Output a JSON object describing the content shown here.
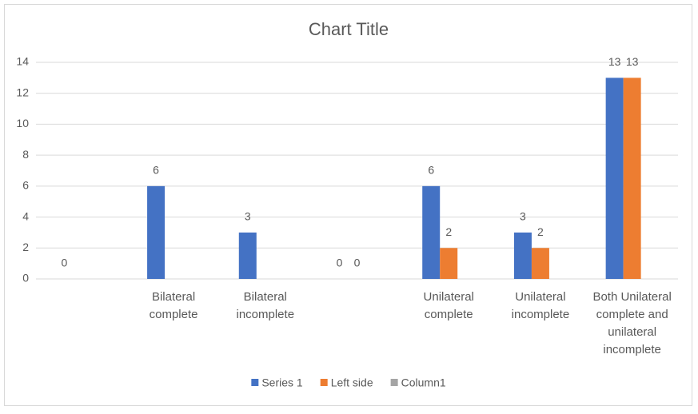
{
  "chart_data": {
    "type": "bar",
    "title": "Chart Title",
    "categories": [
      null,
      "Bilateral complete",
      "Bilateral incomplete",
      null,
      "Unilateral complete",
      "Unilateral incomplete",
      "Both Unilateral complete and unilateral incomplete"
    ],
    "series": [
      {
        "name": "Series 1",
        "color": "#4472c4",
        "values": [
          0,
          6,
          3,
          0,
          6,
          3,
          13
        ]
      },
      {
        "name": "Left side",
        "color": "#ed7d31",
        "values": [
          null,
          null,
          null,
          0,
          2,
          2,
          13
        ]
      },
      {
        "name": "Column1",
        "color": "#a5a5a5",
        "values": [
          null,
          null,
          null,
          null,
          null,
          null,
          null
        ]
      }
    ],
    "ylim": [
      0,
      14
    ],
    "yticks": [
      0,
      2,
      4,
      6,
      8,
      10,
      12,
      14
    ],
    "grid": true,
    "legend": "bottom"
  }
}
